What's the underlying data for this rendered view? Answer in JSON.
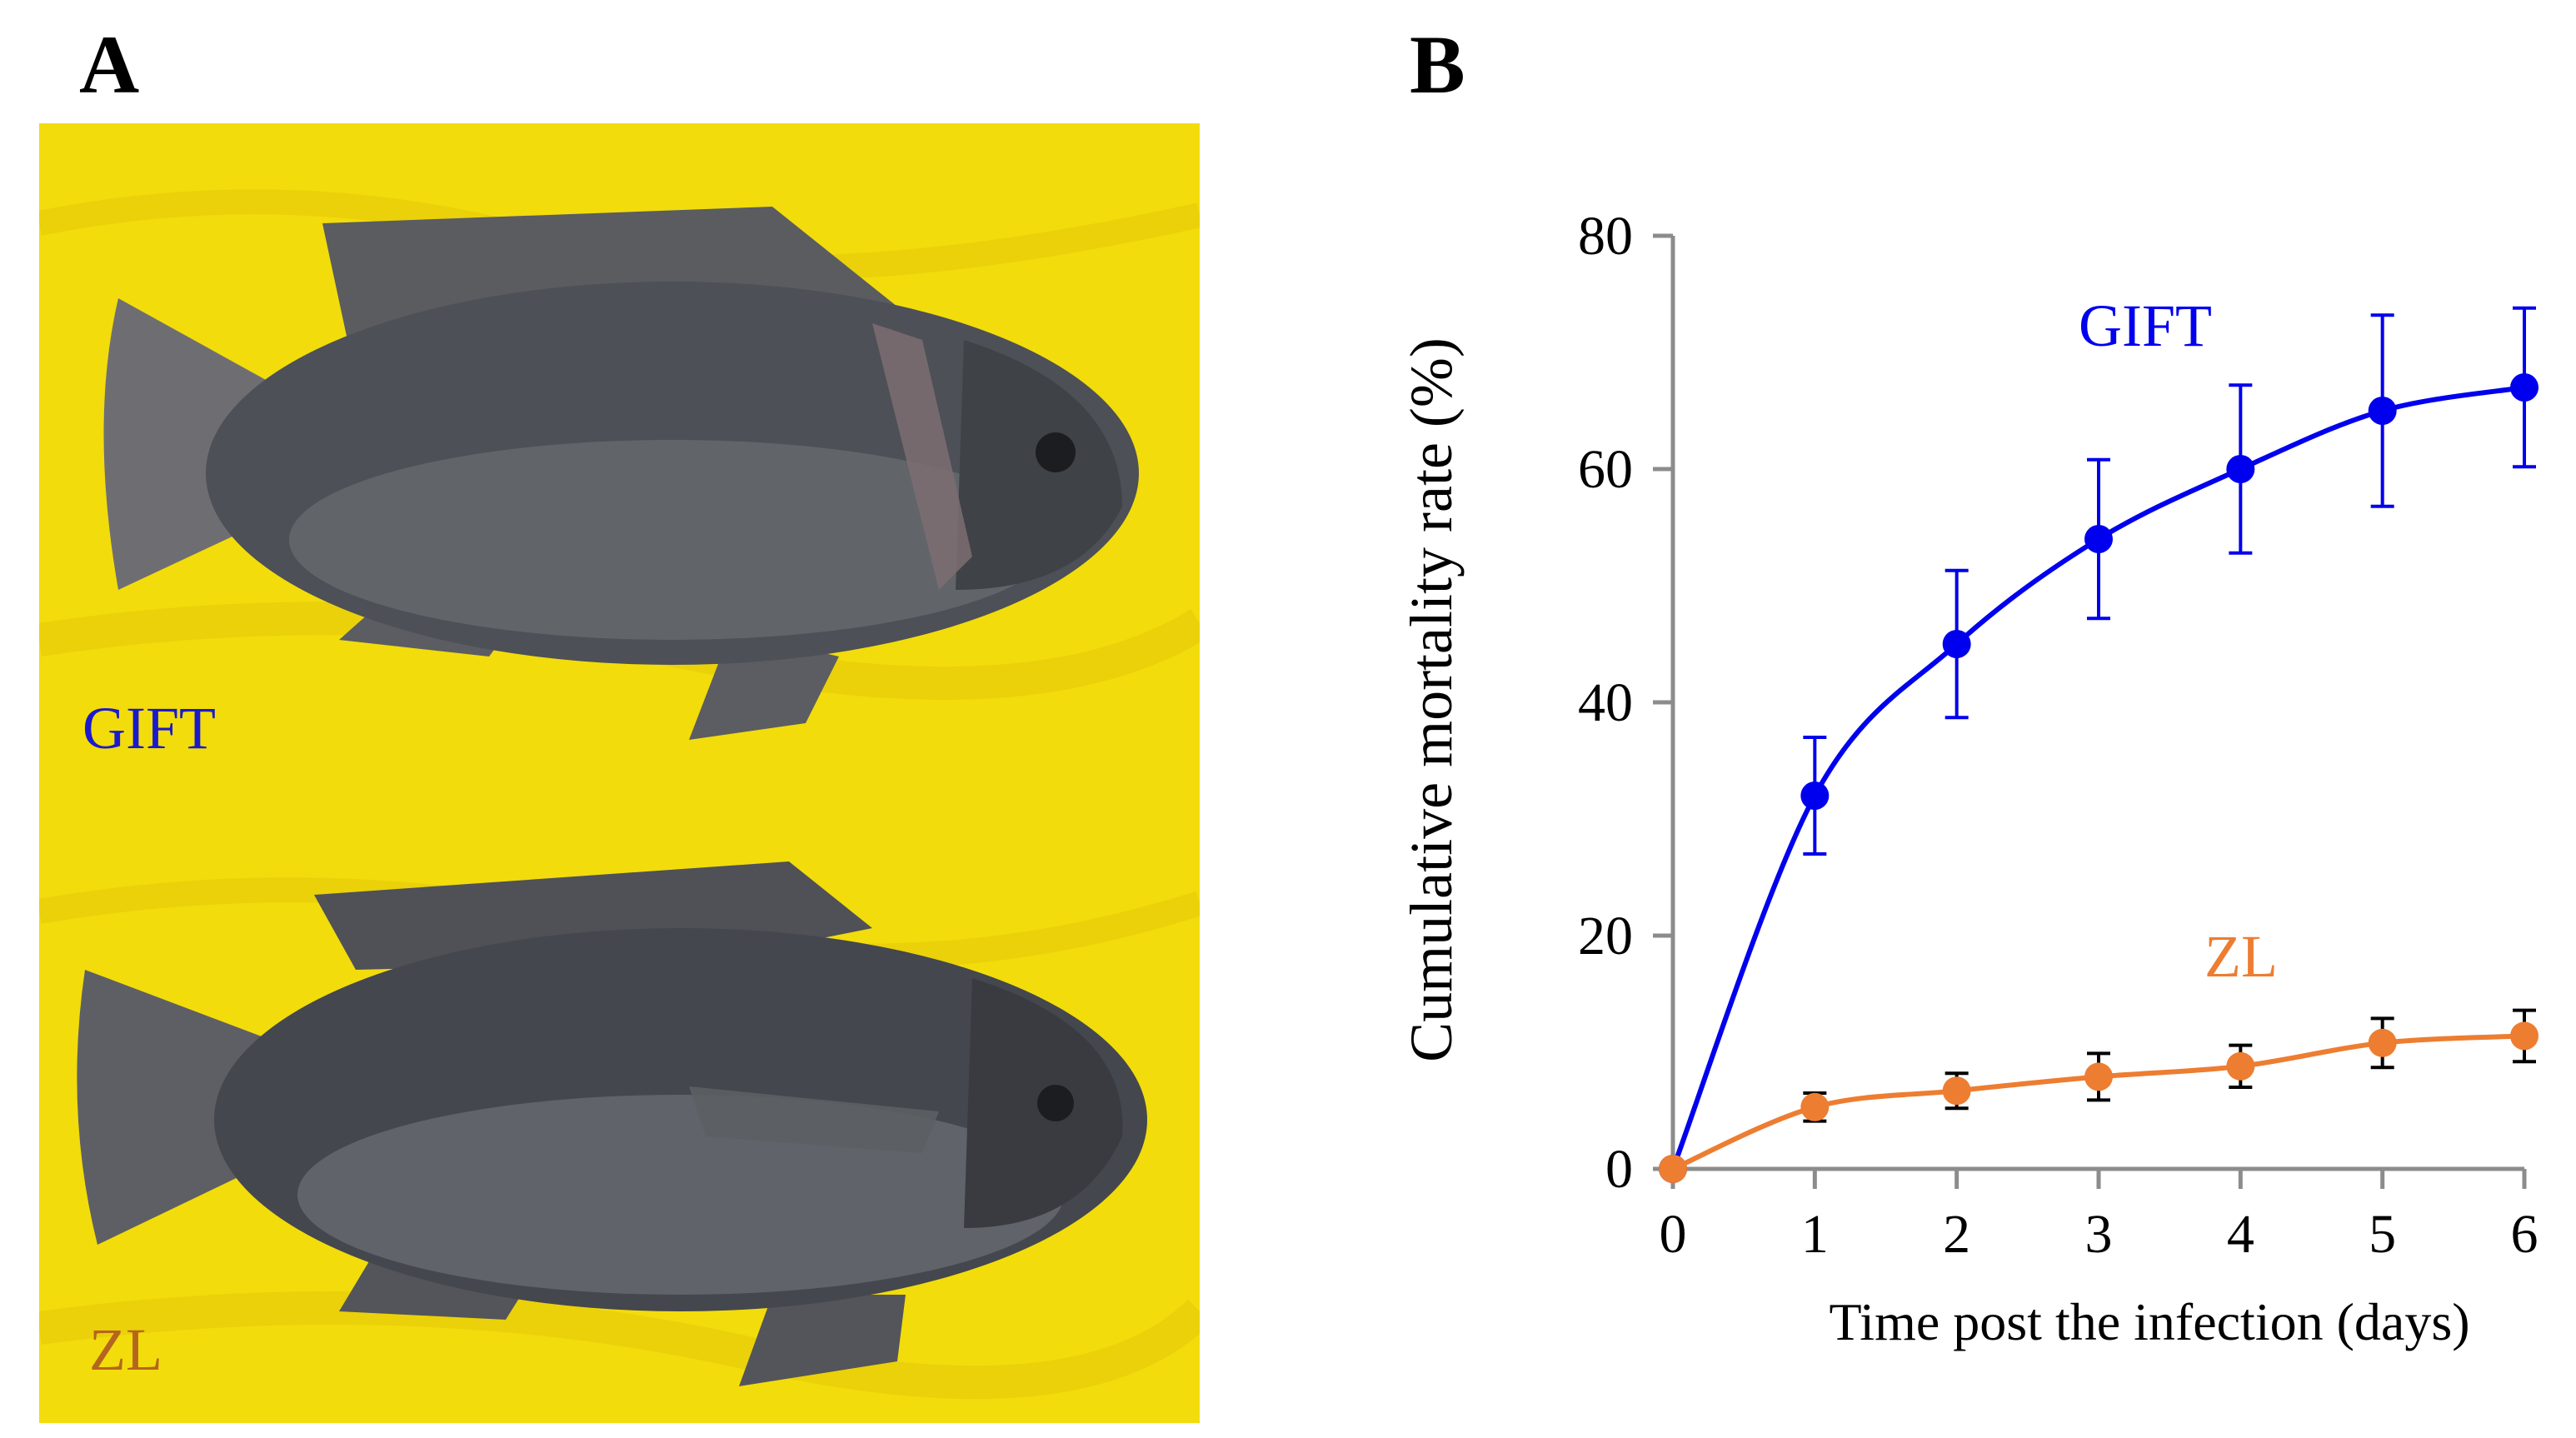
{
  "panel_a": {
    "letter": "A",
    "photos": [
      {
        "label": "GIFT",
        "label_color": "#1a1acc"
      },
      {
        "label": "ZL",
        "label_color": "#b5651d"
      }
    ],
    "background_color": "#f2dc0c"
  },
  "panel_b": {
    "letter": "B"
  },
  "chart_data": {
    "type": "line",
    "title": "",
    "xlabel": "Time post the infection (days)",
    "ylabel": "Cumulative mortality rate (%)",
    "xlim": [
      0,
      6
    ],
    "ylim": [
      0,
      80
    ],
    "xticks": [
      0,
      1,
      2,
      3,
      4,
      5,
      6
    ],
    "yticks": [
      0,
      20,
      40,
      60,
      80
    ],
    "grid": false,
    "x": [
      0,
      1,
      2,
      3,
      4,
      5,
      6
    ],
    "series": [
      {
        "name": "GIFT",
        "color": "#0000ee",
        "values": [
          0,
          32,
          45,
          54,
          60,
          65,
          67
        ],
        "errors": [
          0,
          5,
          6.3,
          6.8,
          7.2,
          8.2,
          6.8
        ]
      },
      {
        "name": "ZL",
        "color": "#ed7d31",
        "values": [
          0,
          5.3,
          6.7,
          7.9,
          8.8,
          10.8,
          11.4
        ],
        "errors": [
          0,
          1.2,
          1.5,
          2.0,
          1.8,
          2.1,
          2.2
        ]
      }
    ]
  }
}
